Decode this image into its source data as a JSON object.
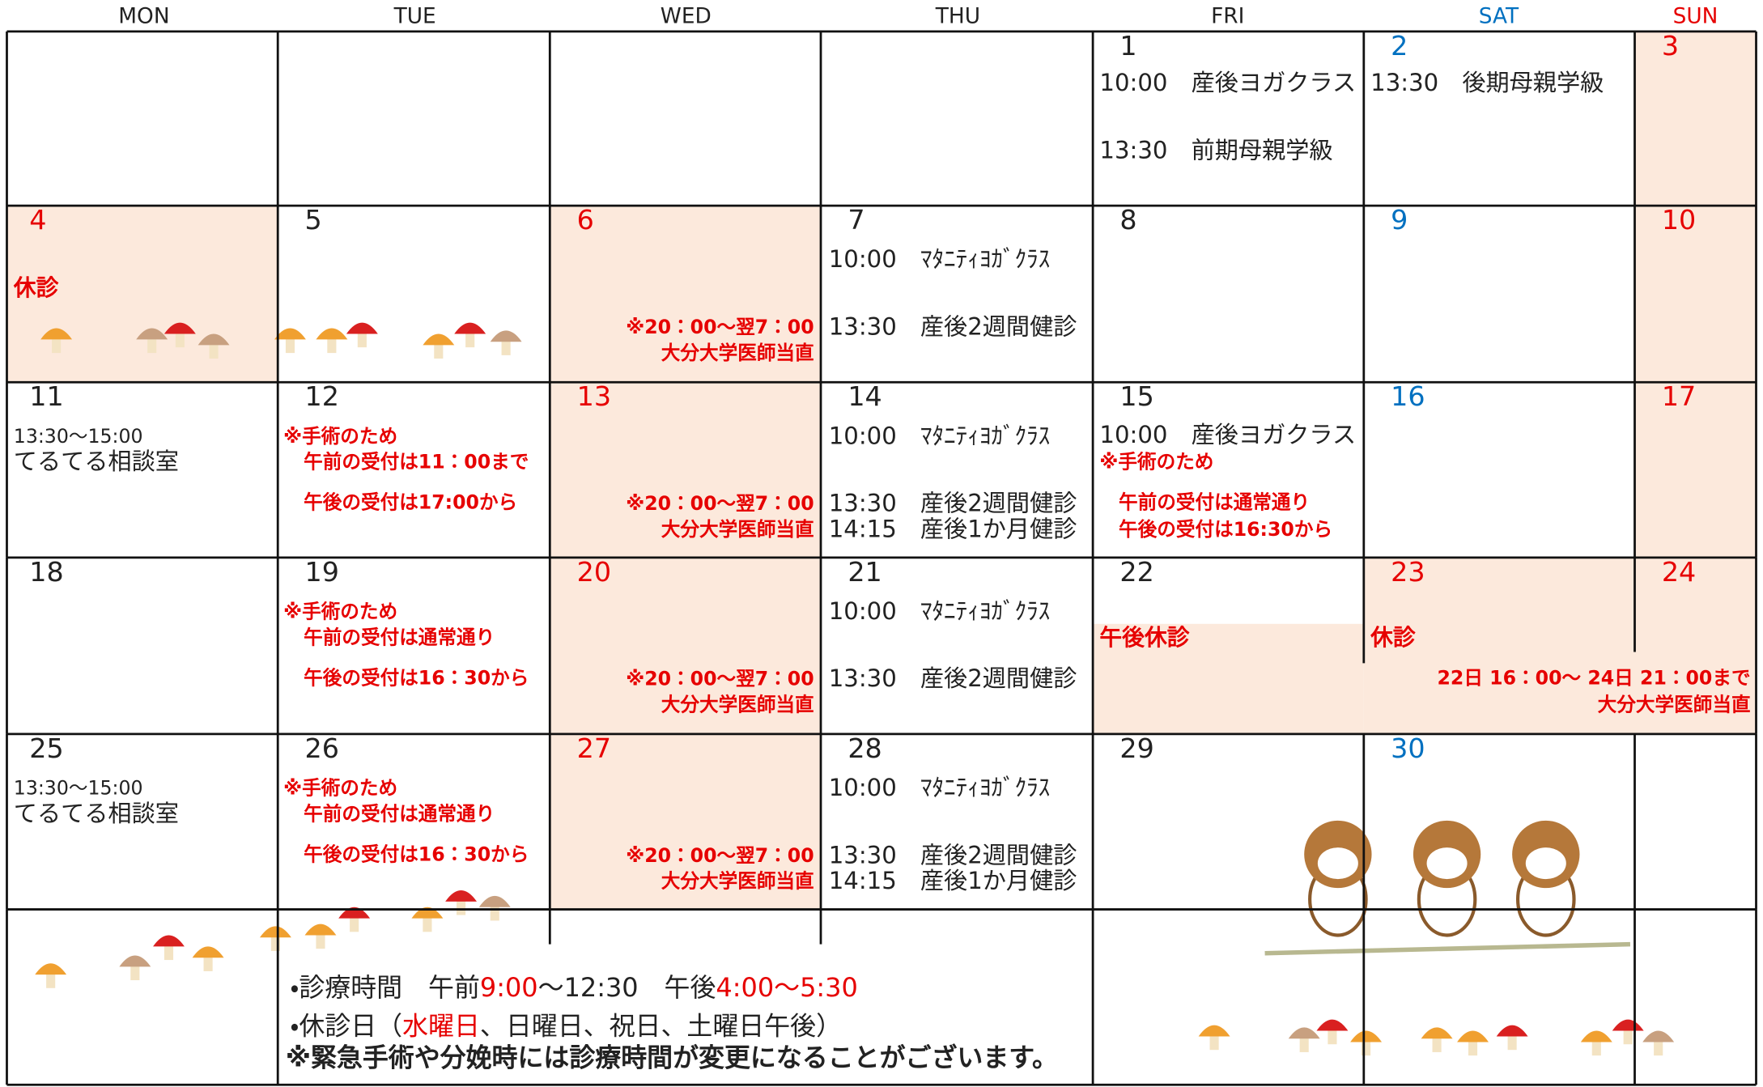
{
  "weekdays": [
    "MON",
    "TUE",
    "WED",
    "THU",
    "FRI",
    "SAT",
    "SUN"
  ],
  "weekday_colors": [
    "#222222",
    "#222222",
    "#222222",
    "#222222",
    "#222222",
    "#0070c0",
    "#e60000"
  ],
  "weeks": [
    [
      null,
      null,
      null,
      null,
      {
        "day": "1",
        "lines": [
          "10:00　産後ヨガクラス",
          "13:30　前期母親学級"
        ]
      },
      {
        "day": "2",
        "color": "#0070c0",
        "lines": [
          "13:30　後期母親学級"
        ]
      },
      {
        "day": "3",
        "color": "#e60000"
      }
    ],
    [
      {
        "day": "4",
        "color": "#e60000",
        "lines": [
          "休診"
        ]
      },
      {
        "day": "5"
      },
      {
        "day": "6",
        "color": "#e60000",
        "lines": [
          "※20：00～翌7：00",
          "大分大学医師当直"
        ]
      },
      {
        "day": "7",
        "lines": [
          "10:00　ﾏﾀﾆﾃｨﾖｶﾞｸﾗｽ",
          "13:30　産後2週間健診"
        ]
      },
      {
        "day": "8"
      },
      {
        "day": "9",
        "color": "#0070c0"
      },
      {
        "day": "10",
        "color": "#e60000"
      }
    ],
    [
      {
        "day": "11",
        "lines": [
          "13:30～15:00",
          "てるてる相談室"
        ]
      },
      {
        "day": "12",
        "lines": [
          "※手術のため",
          "午前の受付は11：00まで",
          "午後の受付は17:00から"
        ]
      },
      {
        "day": "13",
        "color": "#e60000",
        "lines": [
          "※20：00～翌7：00",
          "大分大学医師当直"
        ]
      },
      {
        "day": "14",
        "lines": [
          "10:00　ﾏﾀﾆﾃｨﾖｶﾞｸﾗｽ",
          "13:30　産後2週間健診",
          "14:15　産後1か月健診"
        ]
      },
      {
        "day": "15",
        "lines": [
          "10:00　産後ヨガクラス",
          "※手術のため",
          "午前の受付は通常通り",
          "午後の受付は16:30から"
        ]
      },
      {
        "day": "16",
        "color": "#0070c0"
      },
      {
        "day": "17",
        "color": "#e60000"
      }
    ],
    [
      {
        "day": "18"
      },
      {
        "day": "19",
        "lines": [
          "※手術のため",
          "午前の受付は通常通り",
          "午後の受付は16：30から"
        ]
      },
      {
        "day": "20",
        "color": "#e60000",
        "lines": [
          "※20：00～翌7：00",
          "大分大学医師当直"
        ]
      },
      {
        "day": "21",
        "lines": [
          "10:00　ﾏﾀﾆﾃｨﾖｶﾞｸﾗｽ",
          "13:30　産後2週間健診"
        ]
      },
      {
        "day": "22",
        "lines": [
          "午後休診"
        ]
      },
      {
        "day": "23",
        "color": "#e60000",
        "lines": [
          "休診"
        ]
      },
      {
        "day": "24",
        "color": "#e60000",
        "lines": [
          "22日 16：00～ 24日 21：00まで",
          "大分大学医師当直"
        ]
      }
    ],
    [
      {
        "day": "25",
        "lines": [
          "13:30～15:00",
          "てるてる相談室"
        ]
      },
      {
        "day": "26",
        "lines": [
          "※手術のため",
          "午前の受付は通常通り",
          "午後の受付は16：30から"
        ]
      },
      {
        "day": "27",
        "color": "#e60000",
        "lines": [
          "※20：00～翌7：00",
          "大分大学医師当直"
        ]
      },
      {
        "day": "28",
        "lines": [
          "10:00　ﾏﾀﾆﾃｨﾖｶﾞｸﾗｽ",
          "13:30　産後2週間健診",
          "14:15　産後1か月健診"
        ]
      },
      {
        "day": "29"
      },
      {
        "day": "30",
        "color": "#0070c0"
      },
      null
    ]
  ],
  "footer": {
    "hours": [
      "・診療時間　午前",
      "9:00",
      "～12:30　午後",
      "4:00～5:30"
    ],
    "closed": [
      "・休診日（",
      "水曜日",
      "、日曜日、祝日、土曜日午後）"
    ],
    "notice": "※緊急手術や分娩時には診療時間が変更になることがございます。"
  }
}
